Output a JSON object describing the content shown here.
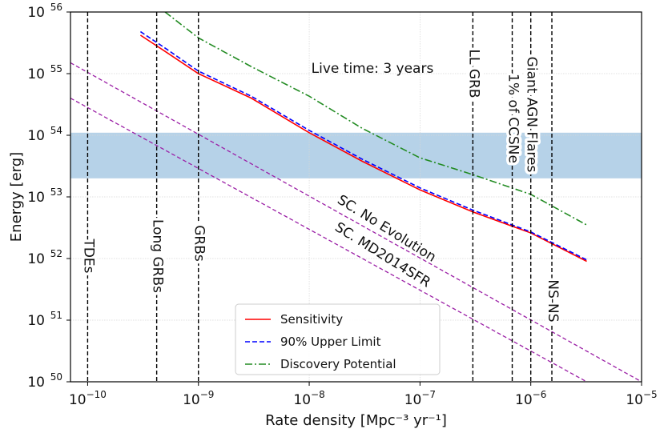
{
  "chart_data": {
    "type": "line",
    "xlabel": "Rate density [Mpc⁻³ yr⁻¹]",
    "ylabel": "Energy [erg]",
    "xscale": "log",
    "yscale": "log",
    "xlim": [
      7e-11,
      1e-05
    ],
    "ylim": [
      1e+50,
      1e+56
    ],
    "grid": true,
    "x_ticks": [
      {
        "value": 1e-10,
        "mant": "10",
        "exp": "−10"
      },
      {
        "value": 1e-09,
        "mant": "10",
        "exp": "−9"
      },
      {
        "value": 1e-08,
        "mant": "10",
        "exp": "−8"
      },
      {
        "value": 1e-07,
        "mant": "10",
        "exp": "−7"
      },
      {
        "value": 1e-06,
        "mant": "10",
        "exp": "−6"
      },
      {
        "value": 1e-05,
        "mant": "10",
        "exp": "−5"
      }
    ],
    "y_ticks": [
      {
        "value": 1e+50,
        "mant": "10",
        "exp": "50"
      },
      {
        "value": 1e+51,
        "mant": "10",
        "exp": "51"
      },
      {
        "value": 1e+52,
        "mant": "10",
        "exp": "52"
      },
      {
        "value": 1e+53,
        "mant": "10",
        "exp": "53"
      },
      {
        "value": 1e+54,
        "mant": "10",
        "exp": "54"
      },
      {
        "value": 1e+55,
        "mant": "10",
        "exp": "55"
      },
      {
        "value": 1e+56,
        "mant": "10",
        "exp": "56"
      }
    ],
    "series": [
      {
        "name": "Sensitivity",
        "color": "#ff0000",
        "dash": "solid",
        "x": [
          3e-10,
          5e-10,
          1e-09,
          3e-09,
          1e-08,
          3e-08,
          1e-07,
          3e-07,
          1e-06,
          3.2e-06
        ],
        "y": [
          4.2e+55,
          2.3e+55,
          1e+55,
          4e+54,
          1.1e+54,
          3.8e+53,
          1.3e+53,
          5.7e+52,
          2.6e+52,
          9e+51
        ]
      },
      {
        "name": "90% Upper Limit",
        "color": "#0000ff",
        "dash": "dashed",
        "x": [
          3e-10,
          5e-10,
          1e-09,
          3e-09,
          1e-08,
          3e-08,
          1e-07,
          3e-07,
          1e-06,
          3.2e-06
        ],
        "y": [
          4.8e+55,
          2.6e+55,
          1.1e+55,
          4.3e+54,
          1.2e+54,
          4.1e+53,
          1.4e+53,
          6.1e+52,
          2.7e+52,
          9.5e+51
        ]
      },
      {
        "name": "Discovery Potential",
        "color": "#228b22",
        "dash": "dashdot",
        "x": [
          5e-10,
          1e-09,
          3e-09,
          1e-08,
          3e-08,
          1e-07,
          3e-07,
          1e-06,
          3.2e-06
        ],
        "y": [
          1e+56,
          3.8e+55,
          1.3e+55,
          4.3e+54,
          1.3e+54,
          4.3e+53,
          2.3e+53,
          1.1e+53,
          3.5e+52
        ]
      }
    ],
    "sc_lines": [
      {
        "label": "SC. No Evolution",
        "x": [
          7e-11,
          1e-05
        ],
        "y": [
          1.5e+55,
          1e+50
        ]
      },
      {
        "label": "SC. MD2014SFR",
        "x": [
          7e-11,
          3.2e-06
        ],
        "y": [
          4e+54,
          1e+50
        ]
      }
    ],
    "vlines": [
      {
        "label": "TDEs",
        "x": 1e-10
      },
      {
        "label": "Long GRBs",
        "x": 4.2e-10
      },
      {
        "label": "GRBs",
        "x": 1e-09
      },
      {
        "label": "LL GRB",
        "x": 3e-07
      },
      {
        "label": "1% of CCSNe",
        "x": 6.8e-07
      },
      {
        "label": "Giant AGN Flares",
        "x": 1e-06
      },
      {
        "label": "NS-NS",
        "x": 1.55e-06
      }
    ],
    "band": {
      "y": [
        2e+53,
        1.1e+54
      ],
      "color": "#5d9bcd",
      "opacity": 0.45
    },
    "annotations": [
      {
        "text": "Live time: 3 years"
      }
    ],
    "legend": {
      "position": "bottom-center",
      "entries": [
        "Sensitivity",
        "90% Upper Limit",
        "Discovery Potential"
      ]
    }
  }
}
